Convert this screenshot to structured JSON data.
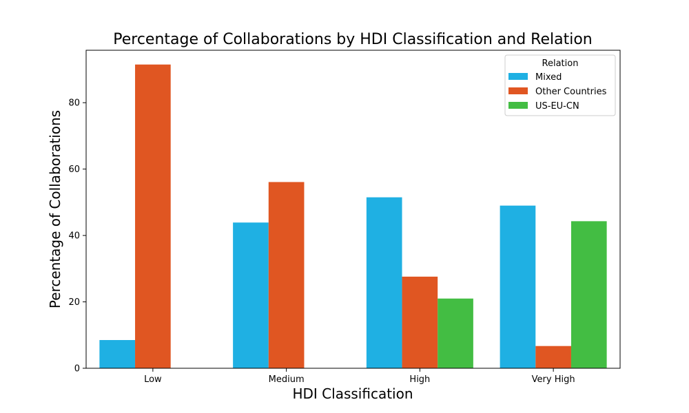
{
  "chart_data": {
    "type": "bar",
    "title": "Percentage of Collaborations by HDI Classification and Relation",
    "xlabel": "HDI Classification",
    "ylabel": "Percentage of Collaborations",
    "categories": [
      "Low",
      "Medium",
      "High",
      "Very High"
    ],
    "series": [
      {
        "name": "Mixed",
        "color": "#1fb0e3",
        "values": [
          8.5,
          43.9,
          51.5,
          49.0
        ]
      },
      {
        "name": "Other Countries",
        "color": "#e05622",
        "values": [
          91.5,
          56.1,
          27.6,
          6.7
        ]
      },
      {
        "name": "US-EU-CN",
        "color": "#43bd43",
        "values": [
          0,
          0,
          21.0,
          44.3
        ]
      }
    ],
    "ylim": [
      0,
      95.8
    ],
    "yticks": [
      0,
      20,
      40,
      60,
      80
    ],
    "legend": {
      "title": "Relation",
      "position": "top-right"
    },
    "grid": false
  }
}
